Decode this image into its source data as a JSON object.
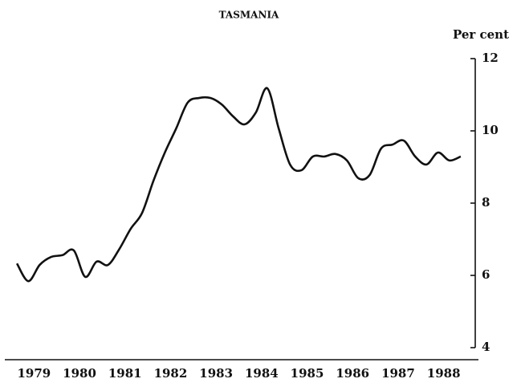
{
  "chart_data": {
    "type": "line",
    "title": "TASMANIA",
    "y_label": "Per cent",
    "categories": [
      "1979",
      null,
      null,
      null,
      "1980",
      null,
      null,
      null,
      "1981",
      null,
      null,
      null,
      "1982",
      null,
      null,
      null,
      "1983",
      null,
      null,
      null,
      "1984",
      null,
      null,
      null,
      "1985",
      null,
      null,
      null,
      "1986",
      null,
      null,
      null,
      "1987",
      null,
      null,
      null,
      "1988",
      null,
      null,
      null
    ],
    "series": [
      {
        "name": "Tasmania",
        "color": "#111111",
        "values": [
          6.33,
          5.84,
          6.29,
          6.51,
          6.56,
          6.69,
          5.96,
          6.38,
          6.29,
          6.73,
          7.29,
          7.73,
          8.62,
          9.4,
          10.07,
          10.78,
          10.91,
          10.91,
          10.73,
          10.4,
          10.18,
          10.51,
          11.18,
          10.07,
          9.07,
          8.91,
          9.29,
          9.29,
          9.36,
          9.18,
          8.69,
          8.78,
          9.51,
          9.62,
          9.73,
          9.29,
          9.07,
          9.4,
          9.18,
          9.29
        ]
      }
    ],
    "ylim": [
      4,
      12
    ],
    "yticks": [
      4,
      6,
      8,
      10,
      12
    ],
    "y_axis_side": "right",
    "grid": false
  }
}
